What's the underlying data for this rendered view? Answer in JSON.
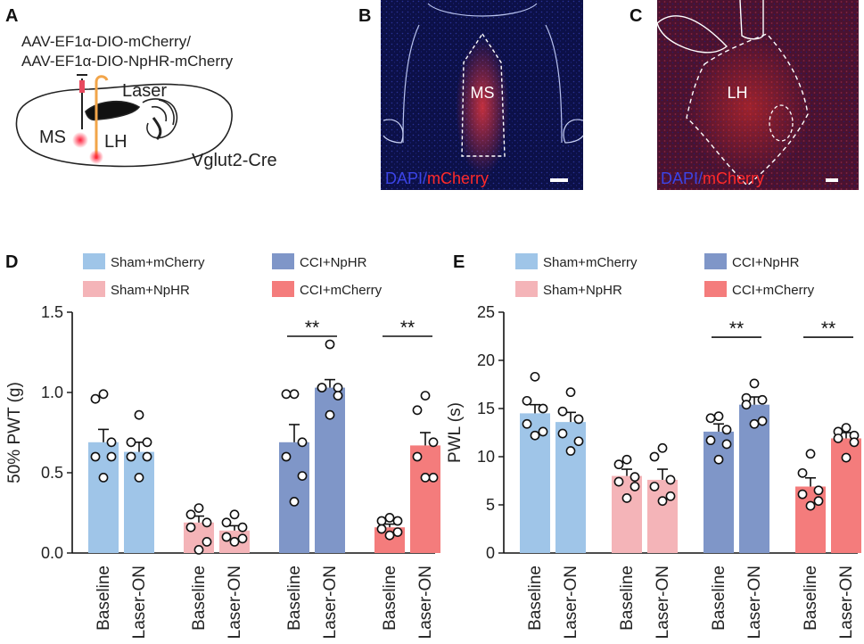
{
  "panel_labels": {
    "A": "A",
    "B": "B",
    "C": "C",
    "D": "D",
    "E": "E"
  },
  "schematic": {
    "virus_line1": "AAV-EF1α-DIO-mCherry/",
    "virus_line2": "AAV-EF1α-DIO-NpHR-mCherry",
    "laser": "Laser",
    "ms": "MS",
    "lh": "LH",
    "mouse_line": "Vglut2-Cre"
  },
  "micrographs": {
    "b_region": "MS",
    "c_region": "LH",
    "stain_dapi": "DAPI",
    "stain_sep": "/",
    "stain_mcherry": "mCherry"
  },
  "colors": {
    "sham_mcherry": "#9fc5e8",
    "sham_nphr": "#f4b4b8",
    "cci_nphr": "#7f96c8",
    "cci_mcherry": "#f47c7c"
  },
  "legend": [
    {
      "label": "Sham+mCherry",
      "color_key": "sham_mcherry"
    },
    {
      "label": "CCI+NpHR",
      "color_key": "cci_nphr"
    },
    {
      "label": "Sham+NpHR",
      "color_key": "sham_nphr"
    },
    {
      "label": "CCI+mCherry",
      "color_key": "cci_mcherry"
    }
  ],
  "chart_data": [
    {
      "panel": "D",
      "type": "bar",
      "ylabel": "50% PWT (g)",
      "ylim": [
        0,
        1.5
      ],
      "yticks": [
        "0.0",
        "0.5",
        "1.0",
        "1.5"
      ],
      "categories": [
        "Baseline",
        "Laser-ON",
        "Baseline",
        "Laser-ON",
        "Baseline",
        "Laser-ON",
        "Baseline",
        "Laser-ON"
      ],
      "groups": [
        "sham_mcherry",
        "sham_mcherry",
        "sham_nphr",
        "sham_nphr",
        "cci_nphr",
        "cci_nphr",
        "cci_mcherry",
        "cci_mcherry"
      ],
      "values": [
        0.69,
        0.63,
        0.19,
        0.14,
        0.69,
        1.03,
        0.16,
        0.67
      ],
      "sem": [
        0.08,
        0.06,
        0.04,
        0.03,
        0.11,
        0.05,
        0.02,
        0.08
      ],
      "points": [
        [
          0.99,
          0.96,
          0.69,
          0.6,
          0.6,
          0.47
        ],
        [
          0.86,
          0.69,
          0.69,
          0.6,
          0.6,
          0.47
        ],
        [
          0.28,
          0.24,
          0.19,
          0.16,
          0.07,
          0.02
        ],
        [
          0.24,
          0.19,
          0.16,
          0.1,
          0.09,
          0.07
        ],
        [
          0.99,
          0.99,
          0.69,
          0.6,
          0.48,
          0.32
        ],
        [
          1.3,
          1.03,
          1.03,
          1.03,
          0.98,
          0.86
        ],
        [
          0.22,
          0.2,
          0.2,
          0.15,
          0.13,
          0.11
        ],
        [
          0.98,
          0.89,
          0.69,
          0.6,
          0.47,
          0.47
        ]
      ],
      "significance": [
        {
          "pair": [
            4,
            5
          ],
          "label": "**",
          "y": 1.35
        },
        {
          "pair": [
            6,
            7
          ],
          "label": "**",
          "y": 1.35
        }
      ]
    },
    {
      "panel": "E",
      "type": "bar",
      "ylabel": "PWL (s)",
      "ylim": [
        0,
        25
      ],
      "yticks": [
        "0",
        "5",
        "10",
        "15",
        "20",
        "25"
      ],
      "categories": [
        "Baseline",
        "Laser-ON",
        "Baseline",
        "Laser-ON",
        "Baseline",
        "Laser-ON",
        "Baseline",
        "Laser-ON"
      ],
      "groups": [
        "sham_mcherry",
        "sham_mcherry",
        "sham_nphr",
        "sham_nphr",
        "cci_nphr",
        "cci_nphr",
        "cci_mcherry",
        "cci_mcherry"
      ],
      "values": [
        14.5,
        13.6,
        8.0,
        7.6,
        12.6,
        15.4,
        6.9,
        11.9
      ],
      "sem": [
        0.9,
        1.0,
        0.7,
        1.1,
        0.8,
        0.8,
        0.9,
        0.6
      ],
      "points": [
        [
          18.3,
          15.8,
          15.0,
          13.4,
          12.6,
          12.2
        ],
        [
          16.7,
          14.7,
          13.9,
          12.4,
          11.6,
          10.6
        ],
        [
          9.7,
          9.2,
          7.9,
          7.4,
          6.9,
          5.7
        ],
        [
          10.9,
          10.0,
          7.6,
          6.9,
          5.9,
          5.4
        ],
        [
          14.2,
          14.0,
          12.8,
          11.7,
          11.3,
          9.7
        ],
        [
          17.6,
          16.1,
          15.9,
          15.4,
          13.7,
          13.4
        ],
        [
          10.3,
          8.3,
          6.5,
          6.1,
          5.4,
          4.9
        ],
        [
          13.0,
          12.6,
          12.2,
          11.9,
          11.5,
          9.9
        ]
      ],
      "significance": [
        {
          "pair": [
            4,
            5
          ],
          "label": "**",
          "y": 22.4
        },
        {
          "pair": [
            6,
            7
          ],
          "label": "**",
          "y": 22.4
        }
      ]
    }
  ]
}
